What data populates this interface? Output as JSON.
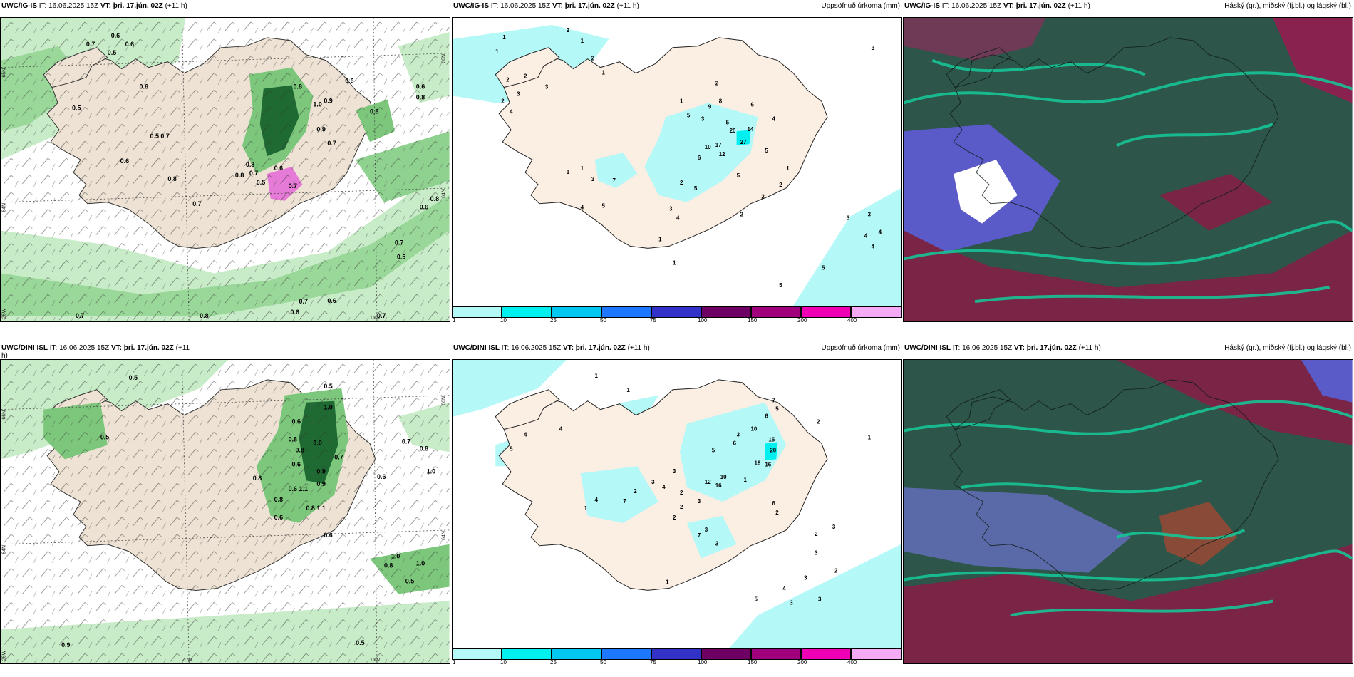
{
  "panels": [
    {
      "model": "UWC/IG-IS",
      "it_label": "IT:",
      "it_value": "16.06.2025 15Z",
      "vt_label": "VT:",
      "vt_value": "þri. 17.jún. 02Z",
      "lead": "(+11 h)",
      "title": "",
      "precip_labels": [
        "0.6",
        "0.7",
        "0.5",
        "0.6",
        "0.5",
        "0.7",
        "0.6",
        "0.8",
        "0.5",
        "0.7",
        "0.6",
        "0.8",
        "0.9",
        "0.6",
        "1.0",
        "0.9",
        "0.7",
        "0.8",
        "0.6",
        "0.7",
        "0.5",
        "0.7",
        "0.8",
        "0.6",
        "0.8",
        "0.7",
        "0.5",
        "0.6",
        "0.8",
        "0.6",
        "0.6",
        "0.7",
        "0.6",
        "0.8",
        "0.7",
        "0.7"
      ],
      "axis_labels": [
        "65N",
        "64N",
        "25W",
        "20W",
        "15W",
        "66N",
        "64N"
      ]
    },
    {
      "model": "UWC/IG-IS",
      "it_label": "IT:",
      "it_value": "16.06.2025 15Z",
      "vt_label": "VT:",
      "vt_value": "þri. 17.jún. 02Z",
      "lead": "(+11 h)",
      "title": "Uppsöfnuð úrkoma (mm)",
      "precip_values": [
        "1",
        "2",
        "1",
        "1",
        "2",
        "1",
        "3",
        "2",
        "2",
        "3",
        "2",
        "4",
        "1",
        "3",
        "2",
        "5",
        "9",
        "8",
        "6",
        "4",
        "5",
        "20",
        "14",
        "27",
        "10",
        "17",
        "12",
        "6",
        "5",
        "1",
        "2",
        "1",
        "1",
        "7",
        "3",
        "5",
        "4",
        "2",
        "5",
        "3",
        "1",
        "4",
        "5",
        "2",
        "2",
        "3",
        "3",
        "4",
        "4",
        "4",
        "5",
        "5",
        "1",
        "3"
      ],
      "colorbar": {
        "ticks": [
          "1",
          "10",
          "25",
          "50",
          "75",
          "100",
          "150",
          "200",
          "400"
        ],
        "colors": [
          "#b4f8f8",
          "#00f0f0",
          "#00c8f0",
          "#1e78ff",
          "#3232c8",
          "#6e0064",
          "#a0007c",
          "#f000b4",
          "#f5aaf5"
        ]
      }
    },
    {
      "model": "UWC/IG-IS",
      "it_label": "IT:",
      "it_value": "16.06.2025 15Z",
      "vt_label": "VT:",
      "vt_value": "þri. 17.jún. 02Z",
      "lead": "(+11 h)",
      "title": "Háský (gr.), miðský (fj.bl.) og lágský (bl.)"
    },
    {
      "model": "UWC/DINI ISL",
      "it_label": "IT:",
      "it_value": "16.06.2025 15Z",
      "vt_label": "VT:",
      "vt_value": "þri. 17.jún. 02Z",
      "lead": "(+11",
      "lead2": "h)",
      "title": "",
      "precip_labels": [
        "0.5",
        "0.5",
        "0.8",
        "0.6",
        "1.0",
        "0.9",
        "0.7",
        "0.8",
        "0.5",
        "0.6",
        "0.8",
        "3.0",
        "0.6",
        "1.1",
        "0.9",
        "0.8",
        "0.6",
        "0.8",
        "1.1",
        "0.6",
        "0.7",
        "0.8",
        "1.0",
        "0.6",
        "1.0",
        "0.8",
        "1.0",
        "0.5",
        "0.9",
        "0.5"
      ],
      "axis_labels": [
        "66N",
        "64N",
        "25W",
        "20W",
        "15W",
        "66N",
        "64N"
      ]
    },
    {
      "model": "UWC/DINI ISL",
      "it_label": "IT:",
      "it_value": "16.06.2025 15Z",
      "vt_label": "VT:",
      "vt_value": "þri. 17.jún. 02Z",
      "lead": "(+11 h)",
      "title": "Uppsöfnuð úrkoma (mm)",
      "precip_values": [
        "1",
        "1",
        "4",
        "4",
        "5",
        "7",
        "5",
        "6",
        "3",
        "10",
        "6",
        "15",
        "20",
        "18",
        "16",
        "2",
        "1",
        "5",
        "10",
        "12",
        "16",
        "1",
        "3",
        "3",
        "4",
        "2",
        "1",
        "4",
        "7",
        "2",
        "2",
        "2",
        "3",
        "6",
        "2",
        "7",
        "3",
        "3",
        "1",
        "2",
        "3",
        "3",
        "2",
        "3",
        "4",
        "5",
        "3",
        "3"
      ],
      "colorbar": {
        "ticks": [
          "1",
          "10",
          "25",
          "50",
          "75",
          "100",
          "150",
          "200",
          "400"
        ],
        "colors": [
          "#b4f8f8",
          "#00f0f0",
          "#00c8f0",
          "#1e78ff",
          "#3232c8",
          "#6e0064",
          "#a0007c",
          "#f000b4",
          "#f5aaf5"
        ]
      }
    },
    {
      "model": "UWC/DINI ISL",
      "it_label": "IT:",
      "it_value": "16.06.2025 15Z",
      "vt_label": "VT:",
      "vt_value": "þri. 17.jún. 02Z",
      "lead": "(+11 h)",
      "title": "Háský (gr.), miðský (fj.bl.) og lágský (bl.)"
    }
  ],
  "colors": {
    "land": "#ede2d3",
    "precip_light": "#c8ecc8",
    "precip_mid": "#7cc77c",
    "precip_dark": "#1e6a32",
    "precip_magenta": "#e67ad7",
    "accum_light": "#b4f8f8",
    "accum_cyan": "#00f0f0",
    "cloud_dark": "#2e5549",
    "cloud_teal": "#16c496",
    "cloud_maroon": "#7a2446",
    "cloud_blue": "#5a5ac8"
  }
}
